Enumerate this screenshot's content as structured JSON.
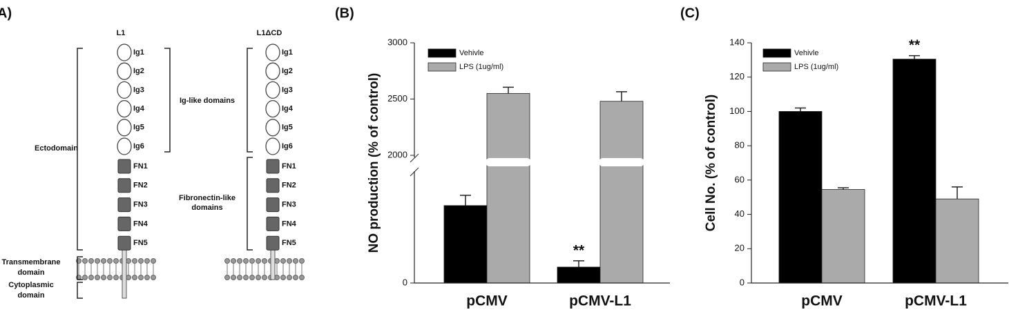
{
  "panel_a": {
    "label": "A)",
    "constructs": [
      {
        "name": "L1",
        "domains": [
          "Ig1",
          "Ig2",
          "Ig3",
          "Ig4",
          "Ig5",
          "Ig6",
          "FN1",
          "FN2",
          "FN3",
          "FN4",
          "FN5"
        ]
      },
      {
        "name": "L1ΔCD",
        "domains": [
          "Ig1",
          "Ig2",
          "Ig3",
          "Ig4",
          "Ig5",
          "Ig6",
          "FN1",
          "FN2",
          "FN3",
          "FN4",
          "FN5"
        ]
      }
    ],
    "ig_label": "Ig-like domains",
    "fn_label": [
      "Fibronectin-like",
      "domains"
    ],
    "ecto_label": "Ectodomain",
    "tm_label": [
      "Transmembrane",
      "domain"
    ],
    "cyto_label": [
      "Cytoplasmic",
      "domain"
    ]
  },
  "chart_data": [
    {
      "type": "bar",
      "panel": "(B)",
      "ylabel": "NO production (% of control)",
      "categories": [
        "pCMV",
        "pCMV-L1"
      ],
      "series": [
        {
          "name": "Vehivle",
          "color": "#000000",
          "values": [
            680,
            140
          ],
          "errors": [
            90,
            55
          ]
        },
        {
          "name": "LPS (1ug/ml)",
          "color": "#aaaaaa",
          "values": [
            2550,
            2480
          ],
          "errors": [
            55,
            85
          ]
        }
      ],
      "ylim": [
        0,
        3000
      ],
      "ybreak": [
        1000,
        2000
      ],
      "yticks": [
        0,
        2000,
        2500,
        3000
      ],
      "annotations": [
        {
          "text": "**",
          "category": "pCMV-L1",
          "series": "Vehivle"
        }
      ]
    },
    {
      "type": "bar",
      "panel": "(C)",
      "ylabel": "Cell No. (% of control)",
      "categories": [
        "pCMV",
        "pCMV-L1"
      ],
      "series": [
        {
          "name": "Vehivle",
          "color": "#000000",
          "values": [
            100,
            130.5
          ],
          "errors": [
            2,
            2
          ]
        },
        {
          "name": "LPS (1ug/ml)",
          "color": "#aaaaaa",
          "values": [
            54.5,
            49
          ],
          "errors": [
            1,
            7
          ]
        }
      ],
      "ylim": [
        0,
        140
      ],
      "yticks": [
        0,
        20,
        40,
        60,
        80,
        100,
        120,
        140
      ],
      "annotations": [
        {
          "text": "**",
          "category": "pCMV-L1",
          "series": "Vehivle"
        }
      ]
    }
  ]
}
